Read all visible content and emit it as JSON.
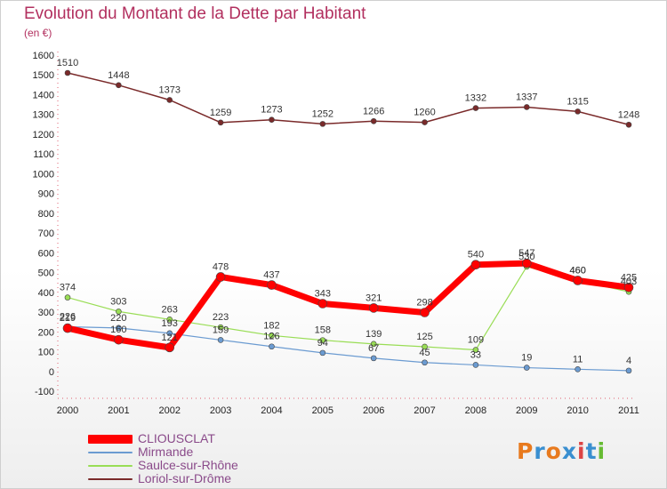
{
  "title": "Evolution du Montant de la Dette par Habitant",
  "unit": "(en €)",
  "logo": "Proxiti",
  "chart_data": {
    "type": "line",
    "x": [
      "2000",
      "2001",
      "2002",
      "2003",
      "2004",
      "2005",
      "2006",
      "2007",
      "2008",
      "2009",
      "2010",
      "2011"
    ],
    "ylim": [
      -100,
      1600
    ],
    "yticks": [
      -100,
      0,
      100,
      200,
      300,
      400,
      500,
      600,
      700,
      800,
      900,
      1000,
      1100,
      1200,
      1300,
      1400,
      1500,
      1600
    ],
    "grid": false,
    "legend_position": "bottom-left",
    "series": [
      {
        "name": "CLIOUSCLAT",
        "color": "#ff0000",
        "values": [
          219,
          160,
          121,
          478,
          437,
          343,
          321,
          298,
          540,
          547,
          460,
          425
        ]
      },
      {
        "name": "Mirmande",
        "color": "#6b9bd1",
        "values": [
          226,
          220,
          193,
          159,
          126,
          94,
          67,
          45,
          33,
          19,
          11,
          4
        ]
      },
      {
        "name": "Saulce-sur-Rhône",
        "color": "#99dd55",
        "values": [
          374,
          303,
          263,
          223,
          182,
          158,
          139,
          125,
          109,
          530,
          460,
          403
        ]
      },
      {
        "name": "Loriol-sur-Drôme",
        "color": "#7a2a2a",
        "values": [
          1510,
          1448,
          1373,
          1259,
          1273,
          1252,
          1266,
          1260,
          1332,
          1337,
          1315,
          1248
        ]
      }
    ]
  }
}
